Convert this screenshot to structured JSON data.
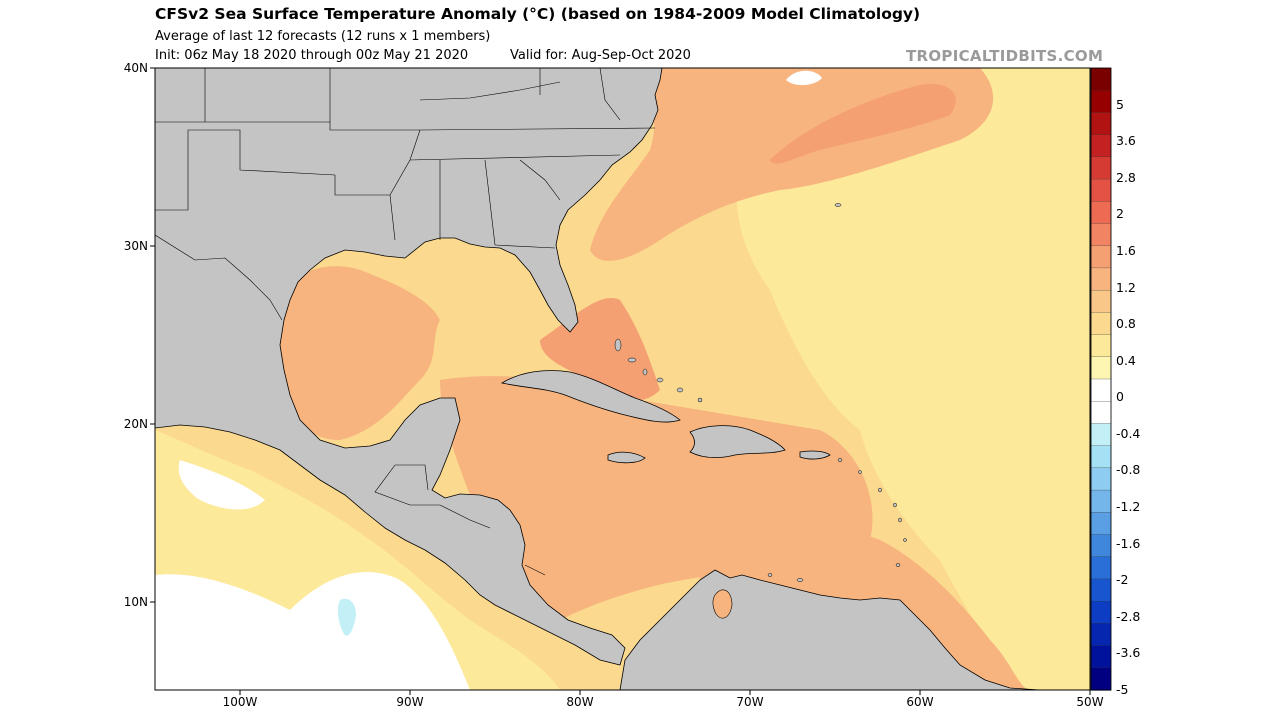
{
  "header": {
    "title": "CFSv2 Sea Surface Temperature Anomaly (°C) (based on 1984-2009 Model Climatology)",
    "subtitle": "Average of last 12 forecasts (12 runs x 1 members)",
    "init": "Init: 06z May 18 2020 through 00z May 21 2020",
    "valid": "Valid for: Aug-Sep-Oct 2020",
    "brand": "TROPICALTIDBITS.COM"
  },
  "map": {
    "extent": {
      "lon": [
        -105,
        -50
      ],
      "lat": [
        5,
        40
      ]
    },
    "lat_ticks": [
      {
        "value": 40,
        "label": "40N"
      },
      {
        "value": 30,
        "label": "30N"
      },
      {
        "value": 20,
        "label": "20N"
      },
      {
        "value": 10,
        "label": "10N"
      }
    ],
    "lon_ticks": [
      {
        "value": -100,
        "label": "100W"
      },
      {
        "value": -90,
        "label": "90W"
      },
      {
        "value": -80,
        "label": "80W"
      },
      {
        "value": -70,
        "label": "70W"
      },
      {
        "value": -60,
        "label": "60W"
      },
      {
        "value": -50,
        "label": "50W"
      }
    ],
    "land_color": "#c4c4c4",
    "border_color": "#000000"
  },
  "colorbar": {
    "colors": [
      "#7a0000",
      "#960000",
      "#b11212",
      "#c42222",
      "#d63b33",
      "#e45244",
      "#ec6b52",
      "#f18563",
      "#f5a072",
      "#f7b47e",
      "#f9c888",
      "#fbd98f",
      "#fde99a",
      "#fdf6b3",
      "#ffffff",
      "#ffffff",
      "#c3f0f7",
      "#a5e1f5",
      "#8ecdf1",
      "#74b6ea",
      "#5a9ee3",
      "#3f86dd",
      "#2a6fd7",
      "#1756cf",
      "#0c3dc2",
      "#0626b0",
      "#00119c",
      "#000080"
    ],
    "labels": [
      "5",
      "3.6",
      "2.8",
      "2",
      "1.6",
      "1.2",
      "0.8",
      "0.4",
      "0",
      "-0.4",
      "-0.8",
      "-1.2",
      "-1.6",
      "-2",
      "-2.8",
      "-3.6",
      "-5"
    ],
    "label_positions": [
      1,
      3,
      5,
      7,
      9,
      11,
      13,
      15,
      17,
      19,
      21,
      23,
      25,
      27,
      29,
      31,
      33
    ]
  }
}
